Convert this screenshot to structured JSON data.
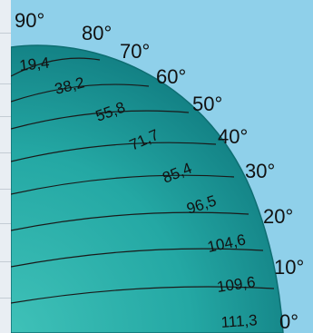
{
  "latitude_labels": [
    "90°",
    "80°",
    "70°",
    "60°",
    "50°",
    "40°",
    "30°",
    "20°",
    "10°",
    "0°"
  ],
  "distance_labels": [
    "19,4",
    "38,2",
    "55,8",
    "71,7",
    "85,4",
    "96,5",
    "104,6",
    "109,6",
    "111,3"
  ],
  "colors": {
    "background": "#8fd0ea",
    "sphere_center": "#2bb0ac",
    "sphere_mid": "#1f9d9b",
    "sphere_edge": "#0f7f82",
    "lines": "#1a1a1a"
  }
}
